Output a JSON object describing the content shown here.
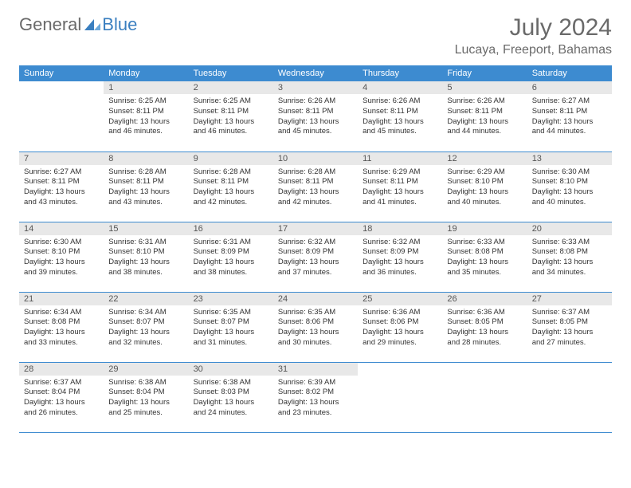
{
  "logo": {
    "text_general": "General",
    "text_blue": "Blue",
    "icon_color": "#3a7fc0"
  },
  "header": {
    "month_title": "July 2024",
    "location": "Lucaya, Freeport, Bahamas"
  },
  "styling": {
    "header_bg": "#3d8bd0",
    "header_text": "#ffffff",
    "day_number_bg": "#e8e8e8",
    "day_number_color": "#555555",
    "border_color": "#3d8bd0",
    "body_text_color": "#333333",
    "title_color": "#6a6a6a",
    "month_title_fontsize": 30,
    "location_fontsize": 16,
    "dayheader_fontsize": 11,
    "cell_fontsize": 9.5
  },
  "day_headers": [
    "Sunday",
    "Monday",
    "Tuesday",
    "Wednesday",
    "Thursday",
    "Friday",
    "Saturday"
  ],
  "weeks": [
    [
      {
        "empty": true
      },
      {
        "num": "1",
        "sunrise": "Sunrise: 6:25 AM",
        "sunset": "Sunset: 8:11 PM",
        "daylight": "Daylight: 13 hours and 46 minutes."
      },
      {
        "num": "2",
        "sunrise": "Sunrise: 6:25 AM",
        "sunset": "Sunset: 8:11 PM",
        "daylight": "Daylight: 13 hours and 46 minutes."
      },
      {
        "num": "3",
        "sunrise": "Sunrise: 6:26 AM",
        "sunset": "Sunset: 8:11 PM",
        "daylight": "Daylight: 13 hours and 45 minutes."
      },
      {
        "num": "4",
        "sunrise": "Sunrise: 6:26 AM",
        "sunset": "Sunset: 8:11 PM",
        "daylight": "Daylight: 13 hours and 45 minutes."
      },
      {
        "num": "5",
        "sunrise": "Sunrise: 6:26 AM",
        "sunset": "Sunset: 8:11 PM",
        "daylight": "Daylight: 13 hours and 44 minutes."
      },
      {
        "num": "6",
        "sunrise": "Sunrise: 6:27 AM",
        "sunset": "Sunset: 8:11 PM",
        "daylight": "Daylight: 13 hours and 44 minutes."
      }
    ],
    [
      {
        "num": "7",
        "sunrise": "Sunrise: 6:27 AM",
        "sunset": "Sunset: 8:11 PM",
        "daylight": "Daylight: 13 hours and 43 minutes."
      },
      {
        "num": "8",
        "sunrise": "Sunrise: 6:28 AM",
        "sunset": "Sunset: 8:11 PM",
        "daylight": "Daylight: 13 hours and 43 minutes."
      },
      {
        "num": "9",
        "sunrise": "Sunrise: 6:28 AM",
        "sunset": "Sunset: 8:11 PM",
        "daylight": "Daylight: 13 hours and 42 minutes."
      },
      {
        "num": "10",
        "sunrise": "Sunrise: 6:28 AM",
        "sunset": "Sunset: 8:11 PM",
        "daylight": "Daylight: 13 hours and 42 minutes."
      },
      {
        "num": "11",
        "sunrise": "Sunrise: 6:29 AM",
        "sunset": "Sunset: 8:11 PM",
        "daylight": "Daylight: 13 hours and 41 minutes."
      },
      {
        "num": "12",
        "sunrise": "Sunrise: 6:29 AM",
        "sunset": "Sunset: 8:10 PM",
        "daylight": "Daylight: 13 hours and 40 minutes."
      },
      {
        "num": "13",
        "sunrise": "Sunrise: 6:30 AM",
        "sunset": "Sunset: 8:10 PM",
        "daylight": "Daylight: 13 hours and 40 minutes."
      }
    ],
    [
      {
        "num": "14",
        "sunrise": "Sunrise: 6:30 AM",
        "sunset": "Sunset: 8:10 PM",
        "daylight": "Daylight: 13 hours and 39 minutes."
      },
      {
        "num": "15",
        "sunrise": "Sunrise: 6:31 AM",
        "sunset": "Sunset: 8:10 PM",
        "daylight": "Daylight: 13 hours and 38 minutes."
      },
      {
        "num": "16",
        "sunrise": "Sunrise: 6:31 AM",
        "sunset": "Sunset: 8:09 PM",
        "daylight": "Daylight: 13 hours and 38 minutes."
      },
      {
        "num": "17",
        "sunrise": "Sunrise: 6:32 AM",
        "sunset": "Sunset: 8:09 PM",
        "daylight": "Daylight: 13 hours and 37 minutes."
      },
      {
        "num": "18",
        "sunrise": "Sunrise: 6:32 AM",
        "sunset": "Sunset: 8:09 PM",
        "daylight": "Daylight: 13 hours and 36 minutes."
      },
      {
        "num": "19",
        "sunrise": "Sunrise: 6:33 AM",
        "sunset": "Sunset: 8:08 PM",
        "daylight": "Daylight: 13 hours and 35 minutes."
      },
      {
        "num": "20",
        "sunrise": "Sunrise: 6:33 AM",
        "sunset": "Sunset: 8:08 PM",
        "daylight": "Daylight: 13 hours and 34 minutes."
      }
    ],
    [
      {
        "num": "21",
        "sunrise": "Sunrise: 6:34 AM",
        "sunset": "Sunset: 8:08 PM",
        "daylight": "Daylight: 13 hours and 33 minutes."
      },
      {
        "num": "22",
        "sunrise": "Sunrise: 6:34 AM",
        "sunset": "Sunset: 8:07 PM",
        "daylight": "Daylight: 13 hours and 32 minutes."
      },
      {
        "num": "23",
        "sunrise": "Sunrise: 6:35 AM",
        "sunset": "Sunset: 8:07 PM",
        "daylight": "Daylight: 13 hours and 31 minutes."
      },
      {
        "num": "24",
        "sunrise": "Sunrise: 6:35 AM",
        "sunset": "Sunset: 8:06 PM",
        "daylight": "Daylight: 13 hours and 30 minutes."
      },
      {
        "num": "25",
        "sunrise": "Sunrise: 6:36 AM",
        "sunset": "Sunset: 8:06 PM",
        "daylight": "Daylight: 13 hours and 29 minutes."
      },
      {
        "num": "26",
        "sunrise": "Sunrise: 6:36 AM",
        "sunset": "Sunset: 8:05 PM",
        "daylight": "Daylight: 13 hours and 28 minutes."
      },
      {
        "num": "27",
        "sunrise": "Sunrise: 6:37 AM",
        "sunset": "Sunset: 8:05 PM",
        "daylight": "Daylight: 13 hours and 27 minutes."
      }
    ],
    [
      {
        "num": "28",
        "sunrise": "Sunrise: 6:37 AM",
        "sunset": "Sunset: 8:04 PM",
        "daylight": "Daylight: 13 hours and 26 minutes."
      },
      {
        "num": "29",
        "sunrise": "Sunrise: 6:38 AM",
        "sunset": "Sunset: 8:04 PM",
        "daylight": "Daylight: 13 hours and 25 minutes."
      },
      {
        "num": "30",
        "sunrise": "Sunrise: 6:38 AM",
        "sunset": "Sunset: 8:03 PM",
        "daylight": "Daylight: 13 hours and 24 minutes."
      },
      {
        "num": "31",
        "sunrise": "Sunrise: 6:39 AM",
        "sunset": "Sunset: 8:02 PM",
        "daylight": "Daylight: 13 hours and 23 minutes."
      },
      {
        "empty": true
      },
      {
        "empty": true
      },
      {
        "empty": true
      }
    ]
  ]
}
